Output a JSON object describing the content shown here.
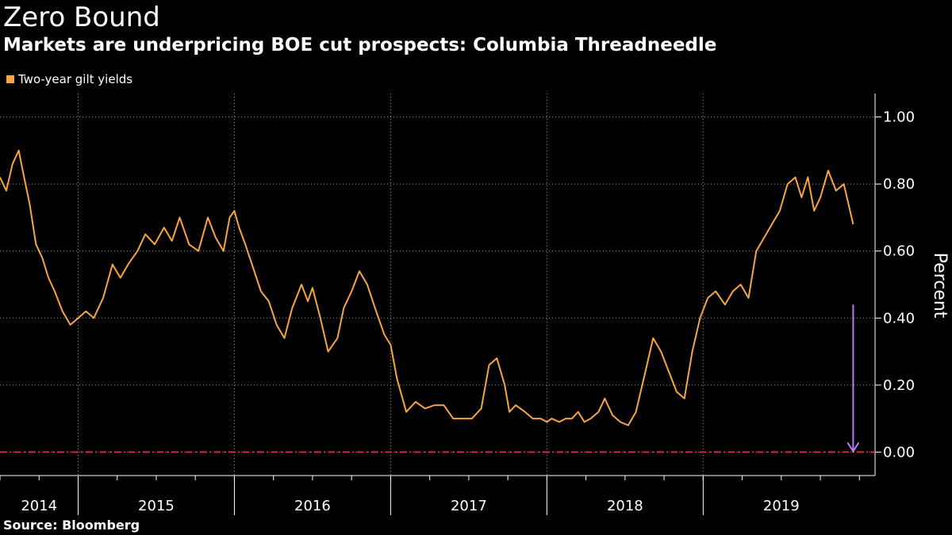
{
  "title": "Zero Bound",
  "subtitle": "Markets are underpricing BOE cut prospects: Columbia Threadneedle",
  "source": "Source:  Bloomberg",
  "legend": {
    "label": "Two-year gilt yields",
    "color": "#F7A544"
  },
  "colors": {
    "background": "#000000",
    "series": "#F7A544",
    "zero_line": "#E0243C",
    "arrow": "#B77CF2",
    "axis": "#FFFFFF",
    "grid": "#9A9A9A"
  },
  "chart_data": {
    "type": "line",
    "title": "Zero Bound",
    "subtitle": "Markets are underpricing BOE cut prospects: Columbia Threadneedle",
    "ylabel": "Percent",
    "xlabel": "",
    "ylim": [
      -0.07,
      1.07
    ],
    "yticks": [
      0.0,
      0.2,
      0.4,
      0.6,
      0.8,
      1.0
    ],
    "ytick_labels": [
      "0.00",
      "0.20",
      "0.40",
      "0.60",
      "0.80",
      "1.00"
    ],
    "y_axis_side": "right",
    "xlim": [
      2014.0,
      2019.6
    ],
    "x_year_labels": [
      "2014",
      "2015",
      "2016",
      "2017",
      "2018",
      "2019"
    ],
    "x_year_label_positions": [
      2014.25,
      2015.0,
      2016.0,
      2017.0,
      2018.0,
      2019.0
    ],
    "year_boundaries": [
      2014.5,
      2015.5,
      2016.5,
      2017.5,
      2018.5
    ],
    "grid": "vertical dotted at year boundaries, horizontal dotted at y ticks",
    "legend_position": "top-left",
    "reference_line": {
      "y": 0.0,
      "style": "dash-dot",
      "label": ""
    },
    "annotation": {
      "type": "arrow",
      "from": {
        "x": 2019.46,
        "y": 0.44
      },
      "to": {
        "x": 2019.46,
        "y": 0.0
      }
    },
    "series": [
      {
        "name": "Two-year gilt yields",
        "x": [
          2014.0,
          2014.04,
          2014.08,
          2014.12,
          2014.15,
          2014.19,
          2014.23,
          2014.27,
          2014.31,
          2014.35,
          2014.4,
          2014.45,
          2014.5,
          2014.55,
          2014.6,
          2014.66,
          2014.72,
          2014.77,
          2014.82,
          2014.88,
          2014.93,
          2014.99,
          2015.05,
          2015.1,
          2015.15,
          2015.21,
          2015.27,
          2015.33,
          2015.38,
          2015.43,
          2015.47,
          2015.5,
          2015.53,
          2015.57,
          2015.62,
          2015.67,
          2015.72,
          2015.77,
          2015.82,
          2015.87,
          2015.93,
          2015.97,
          2016.0,
          2016.05,
          2016.1,
          2016.16,
          2016.2,
          2016.25,
          2016.3,
          2016.35,
          2016.4,
          2016.46,
          2016.5,
          2016.54,
          2016.6,
          2016.66,
          2016.72,
          2016.78,
          2016.84,
          2016.9,
          2016.96,
          2017.02,
          2017.08,
          2017.13,
          2017.18,
          2017.23,
          2017.26,
          2017.3,
          2017.36,
          2017.41,
          2017.46,
          2017.5,
          2017.53,
          2017.58,
          2017.62,
          2017.66,
          2017.7,
          2017.74,
          2017.78,
          2017.83,
          2017.87,
          2017.92,
          2017.97,
          2018.02,
          2018.07,
          2018.13,
          2018.18,
          2018.23,
          2018.28,
          2018.33,
          2018.38,
          2018.43,
          2018.48,
          2018.53,
          2018.58,
          2018.64,
          2018.69,
          2018.74,
          2018.79,
          2018.84,
          2018.89,
          2018.94,
          2018.99,
          2019.04,
          2019.09,
          2019.13,
          2019.17,
          2019.21,
          2019.25,
          2019.3,
          2019.35,
          2019.4,
          2019.44,
          2019.46
        ],
        "y": [
          0.82,
          0.78,
          0.86,
          0.9,
          0.83,
          0.74,
          0.62,
          0.58,
          0.52,
          0.48,
          0.42,
          0.38,
          0.4,
          0.42,
          0.4,
          0.46,
          0.56,
          0.52,
          0.56,
          0.6,
          0.65,
          0.62,
          0.67,
          0.63,
          0.7,
          0.62,
          0.6,
          0.7,
          0.64,
          0.6,
          0.7,
          0.72,
          0.67,
          0.62,
          0.55,
          0.48,
          0.45,
          0.38,
          0.34,
          0.43,
          0.5,
          0.45,
          0.49,
          0.4,
          0.3,
          0.34,
          0.43,
          0.48,
          0.54,
          0.5,
          0.43,
          0.35,
          0.32,
          0.22,
          0.12,
          0.15,
          0.13,
          0.14,
          0.14,
          0.1,
          0.1,
          0.1,
          0.13,
          0.26,
          0.28,
          0.2,
          0.12,
          0.14,
          0.12,
          0.1,
          0.1,
          0.09,
          0.1,
          0.09,
          0.1,
          0.1,
          0.12,
          0.09,
          0.1,
          0.12,
          0.16,
          0.11,
          0.09,
          0.08,
          0.12,
          0.24,
          0.34,
          0.3,
          0.24,
          0.18,
          0.16,
          0.3,
          0.4,
          0.46,
          0.48,
          0.44,
          0.48,
          0.5,
          0.46,
          0.6,
          0.64,
          0.68,
          0.72,
          0.8,
          0.82,
          0.76,
          0.82,
          0.72,
          0.76,
          0.84,
          0.78,
          0.8,
          0.72,
          0.68
        ]
      }
    ]
  }
}
